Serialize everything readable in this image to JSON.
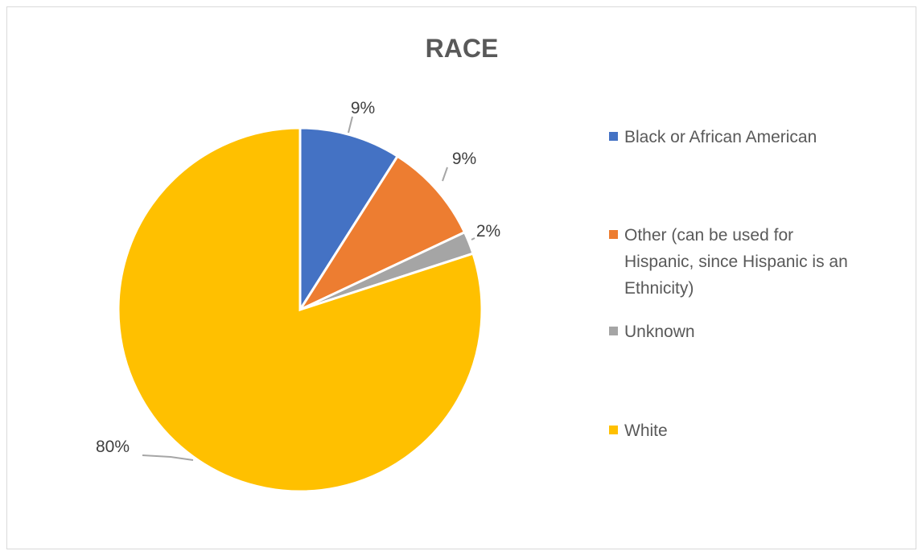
{
  "chart_data": {
    "type": "pie",
    "title": "RACE",
    "categories": [
      "Black or African American",
      "Other (can be used for Hispanic, since Hispanic is an Ethnicity)",
      "Unknown",
      "White"
    ],
    "values": [
      9,
      9,
      2,
      80
    ],
    "data_labels": [
      "9%",
      "9%",
      "2%",
      "80%"
    ],
    "colors": [
      "#4472C4",
      "#ED7D31",
      "#A5A5A5",
      "#FFC000"
    ],
    "legend_position": "right",
    "legend_lines": [
      [
        "Black or African American"
      ],
      [
        "Other (can be used for",
        "Hispanic, since Hispanic is an",
        "Ethnicity)"
      ],
      [
        "Unknown"
      ],
      [
        "White"
      ]
    ]
  }
}
